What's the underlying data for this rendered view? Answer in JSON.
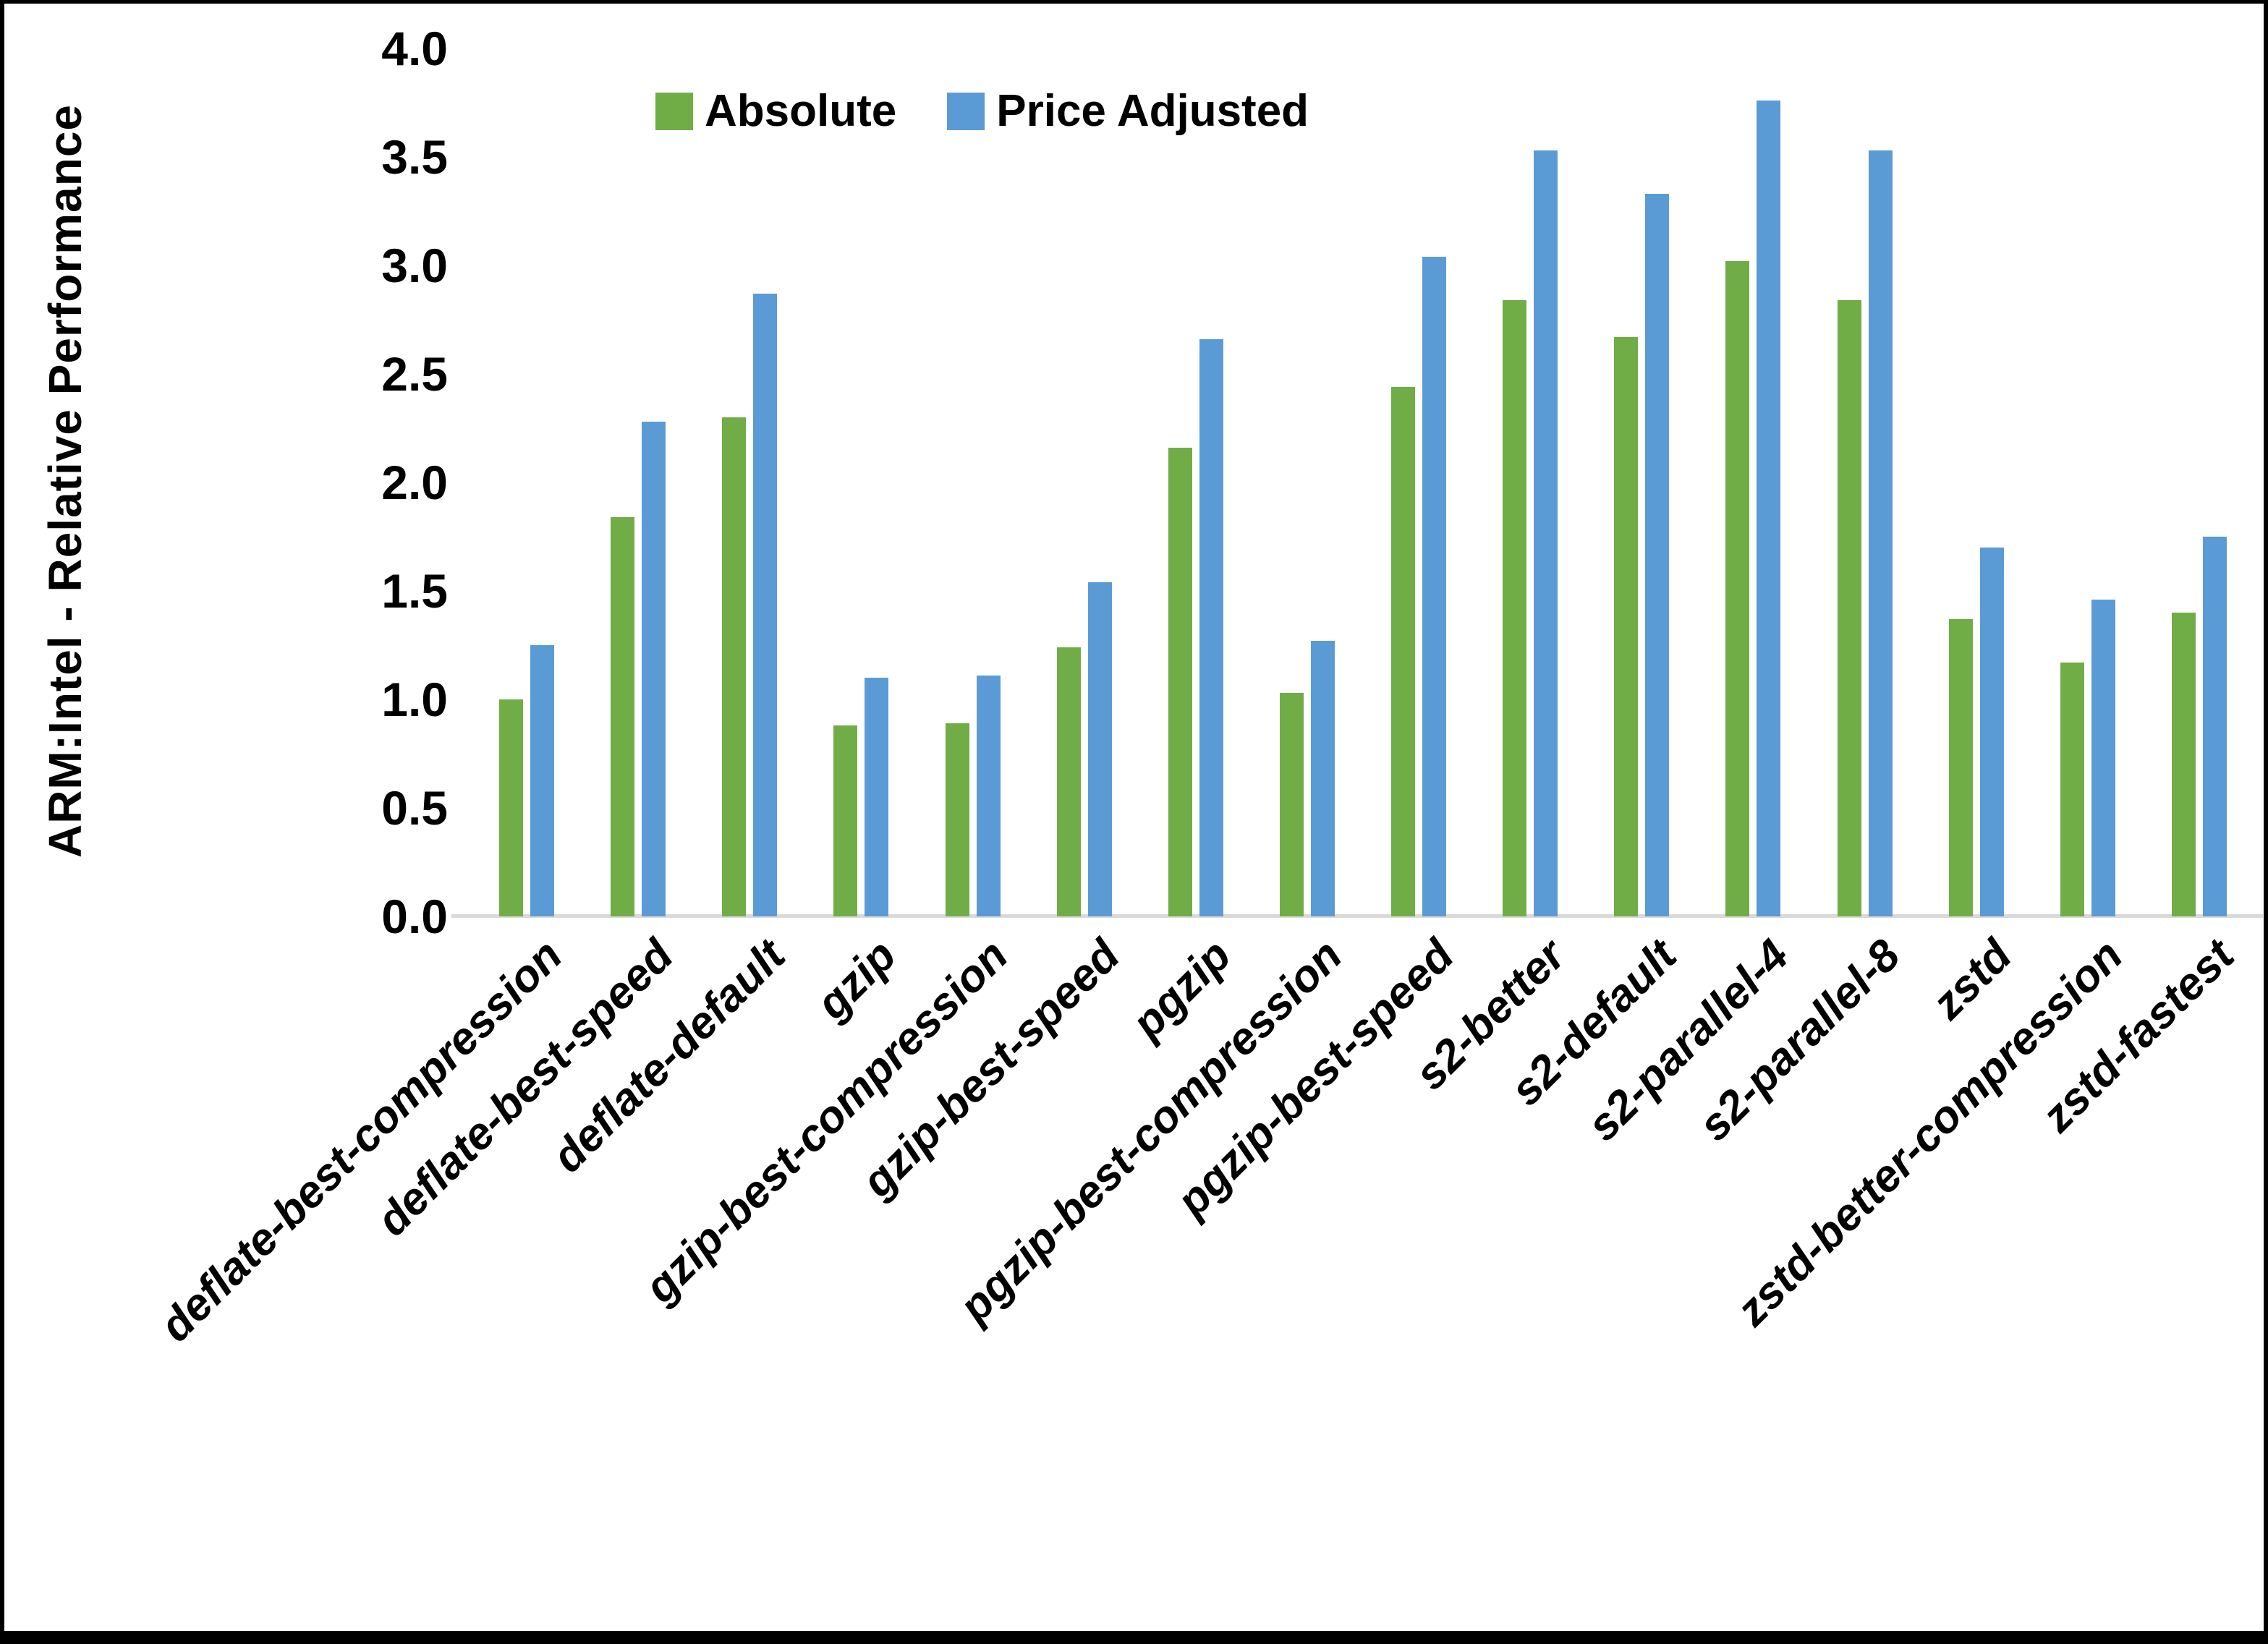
{
  "chart_data": {
    "type": "bar",
    "title": "",
    "xlabel": "",
    "ylabel": "ARM:Intel - Relative Performance",
    "ylim": [
      0.0,
      4.0
    ],
    "ytick_step": 0.5,
    "yticks": [
      "0.0",
      "0.5",
      "1.0",
      "1.5",
      "2.0",
      "2.5",
      "3.0",
      "3.5",
      "4.0"
    ],
    "grid": false,
    "legend_position": "top-center",
    "categories": [
      "deflate-best-compression",
      "deflate-best-speed",
      "deflate-default",
      "gzip",
      "gzip-best-compression",
      "gzip-best-speed",
      "pgzip",
      "pgzip-best-compression",
      "pgzip-best-speed",
      "s2-better",
      "s2-default",
      "s2-parallel-4",
      "s2-parallel-8",
      "zstd",
      "zstd-better-compression",
      "zstd-fastest"
    ],
    "series": [
      {
        "name": "Absolute",
        "color": "#70AD47",
        "values": [
          1.0,
          1.84,
          2.3,
          0.88,
          0.89,
          1.24,
          2.16,
          1.03,
          2.44,
          2.84,
          2.67,
          3.02,
          2.84,
          1.37,
          1.17,
          1.4
        ]
      },
      {
        "name": "Price Adjusted",
        "color": "#5B9BD5",
        "values": [
          1.25,
          2.28,
          2.87,
          1.1,
          1.11,
          1.54,
          2.66,
          1.27,
          3.04,
          3.53,
          3.33,
          3.76,
          3.53,
          1.7,
          1.46,
          1.75
        ]
      }
    ],
    "axis_line_color": "#D9D9D9",
    "text_color": "#000000"
  }
}
